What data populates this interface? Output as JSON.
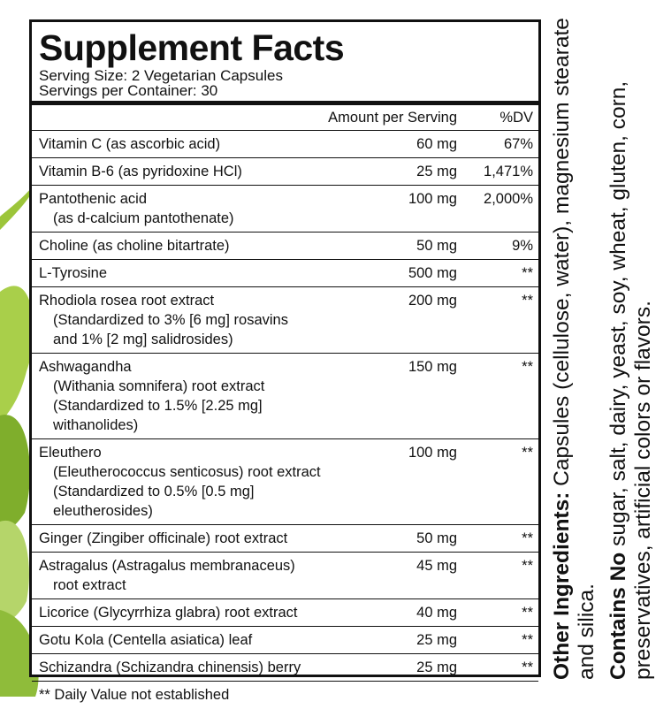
{
  "header": {
    "title": "Supplement Facts",
    "serving_size": "Serving Size: 2 Vegetarian Capsules",
    "servings_per_container": "Servings per Container: 30"
  },
  "table": {
    "columns": [
      "Amount per Serving",
      "%DV"
    ],
    "rows": [
      {
        "name": [
          "Vitamin C (as ascorbic acid)"
        ],
        "amount": "60 mg",
        "dv": "67%"
      },
      {
        "name": [
          "Vitamin B-6 (as pyridoxine HCl)"
        ],
        "amount": "25 mg",
        "dv": "1,471%"
      },
      {
        "name": [
          "Pantothenic acid",
          "(as d-calcium pantothenate)"
        ],
        "amount": "100 mg",
        "dv": "2,000%"
      },
      {
        "name": [
          "Choline (as choline bitartrate)"
        ],
        "amount": "50 mg",
        "dv": "9%"
      },
      {
        "name": [
          "L-Tyrosine"
        ],
        "amount": "500 mg",
        "dv": "**"
      },
      {
        "name": [
          "Rhodiola rosea root extract",
          "(Standardized to 3% [6 mg] rosavins",
          "and 1% [2 mg] salidrosides)"
        ],
        "amount": "200 mg",
        "dv": "**"
      },
      {
        "name": [
          "Ashwagandha",
          "(Withania somnifera) root extract",
          "(Standardized to 1.5% [2.25 mg] withanolides)"
        ],
        "amount": "150 mg",
        "dv": "**"
      },
      {
        "name": [
          "Eleuthero",
          "(Eleutherococcus senticosus) root extract",
          "(Standardized to 0.5% [0.5 mg] eleutherosides)"
        ],
        "amount": "100 mg",
        "dv": "**"
      },
      {
        "name": [
          "Ginger (Zingiber officinale) root extract"
        ],
        "amount": "50 mg",
        "dv": "**"
      },
      {
        "name": [
          "Astragalus (Astragalus membranaceus)",
          "root extract"
        ],
        "amount": "45 mg",
        "dv": "**"
      },
      {
        "name": [
          "Licorice (Glycyrrhiza glabra) root extract"
        ],
        "amount": "40 mg",
        "dv": "**"
      },
      {
        "name": [
          "Gotu Kola (Centella asiatica) leaf"
        ],
        "amount": "25 mg",
        "dv": "**"
      },
      {
        "name": [
          "Schizandra (Schizandra chinensis) berry"
        ],
        "amount": "25 mg",
        "dv": "**"
      }
    ],
    "footnote": "** Daily Value not established"
  },
  "side": {
    "other_ingredients_label": "Other Ingredients:",
    "other_ingredients": "Capsules (cellulose, water), magnesium stearate and silica.",
    "contains_no_label": "Contains No",
    "contains_no": "sugar, salt, dairy, yeast, soy, wheat, gluten, corn, preservatives, artificial colors or flavors."
  }
}
